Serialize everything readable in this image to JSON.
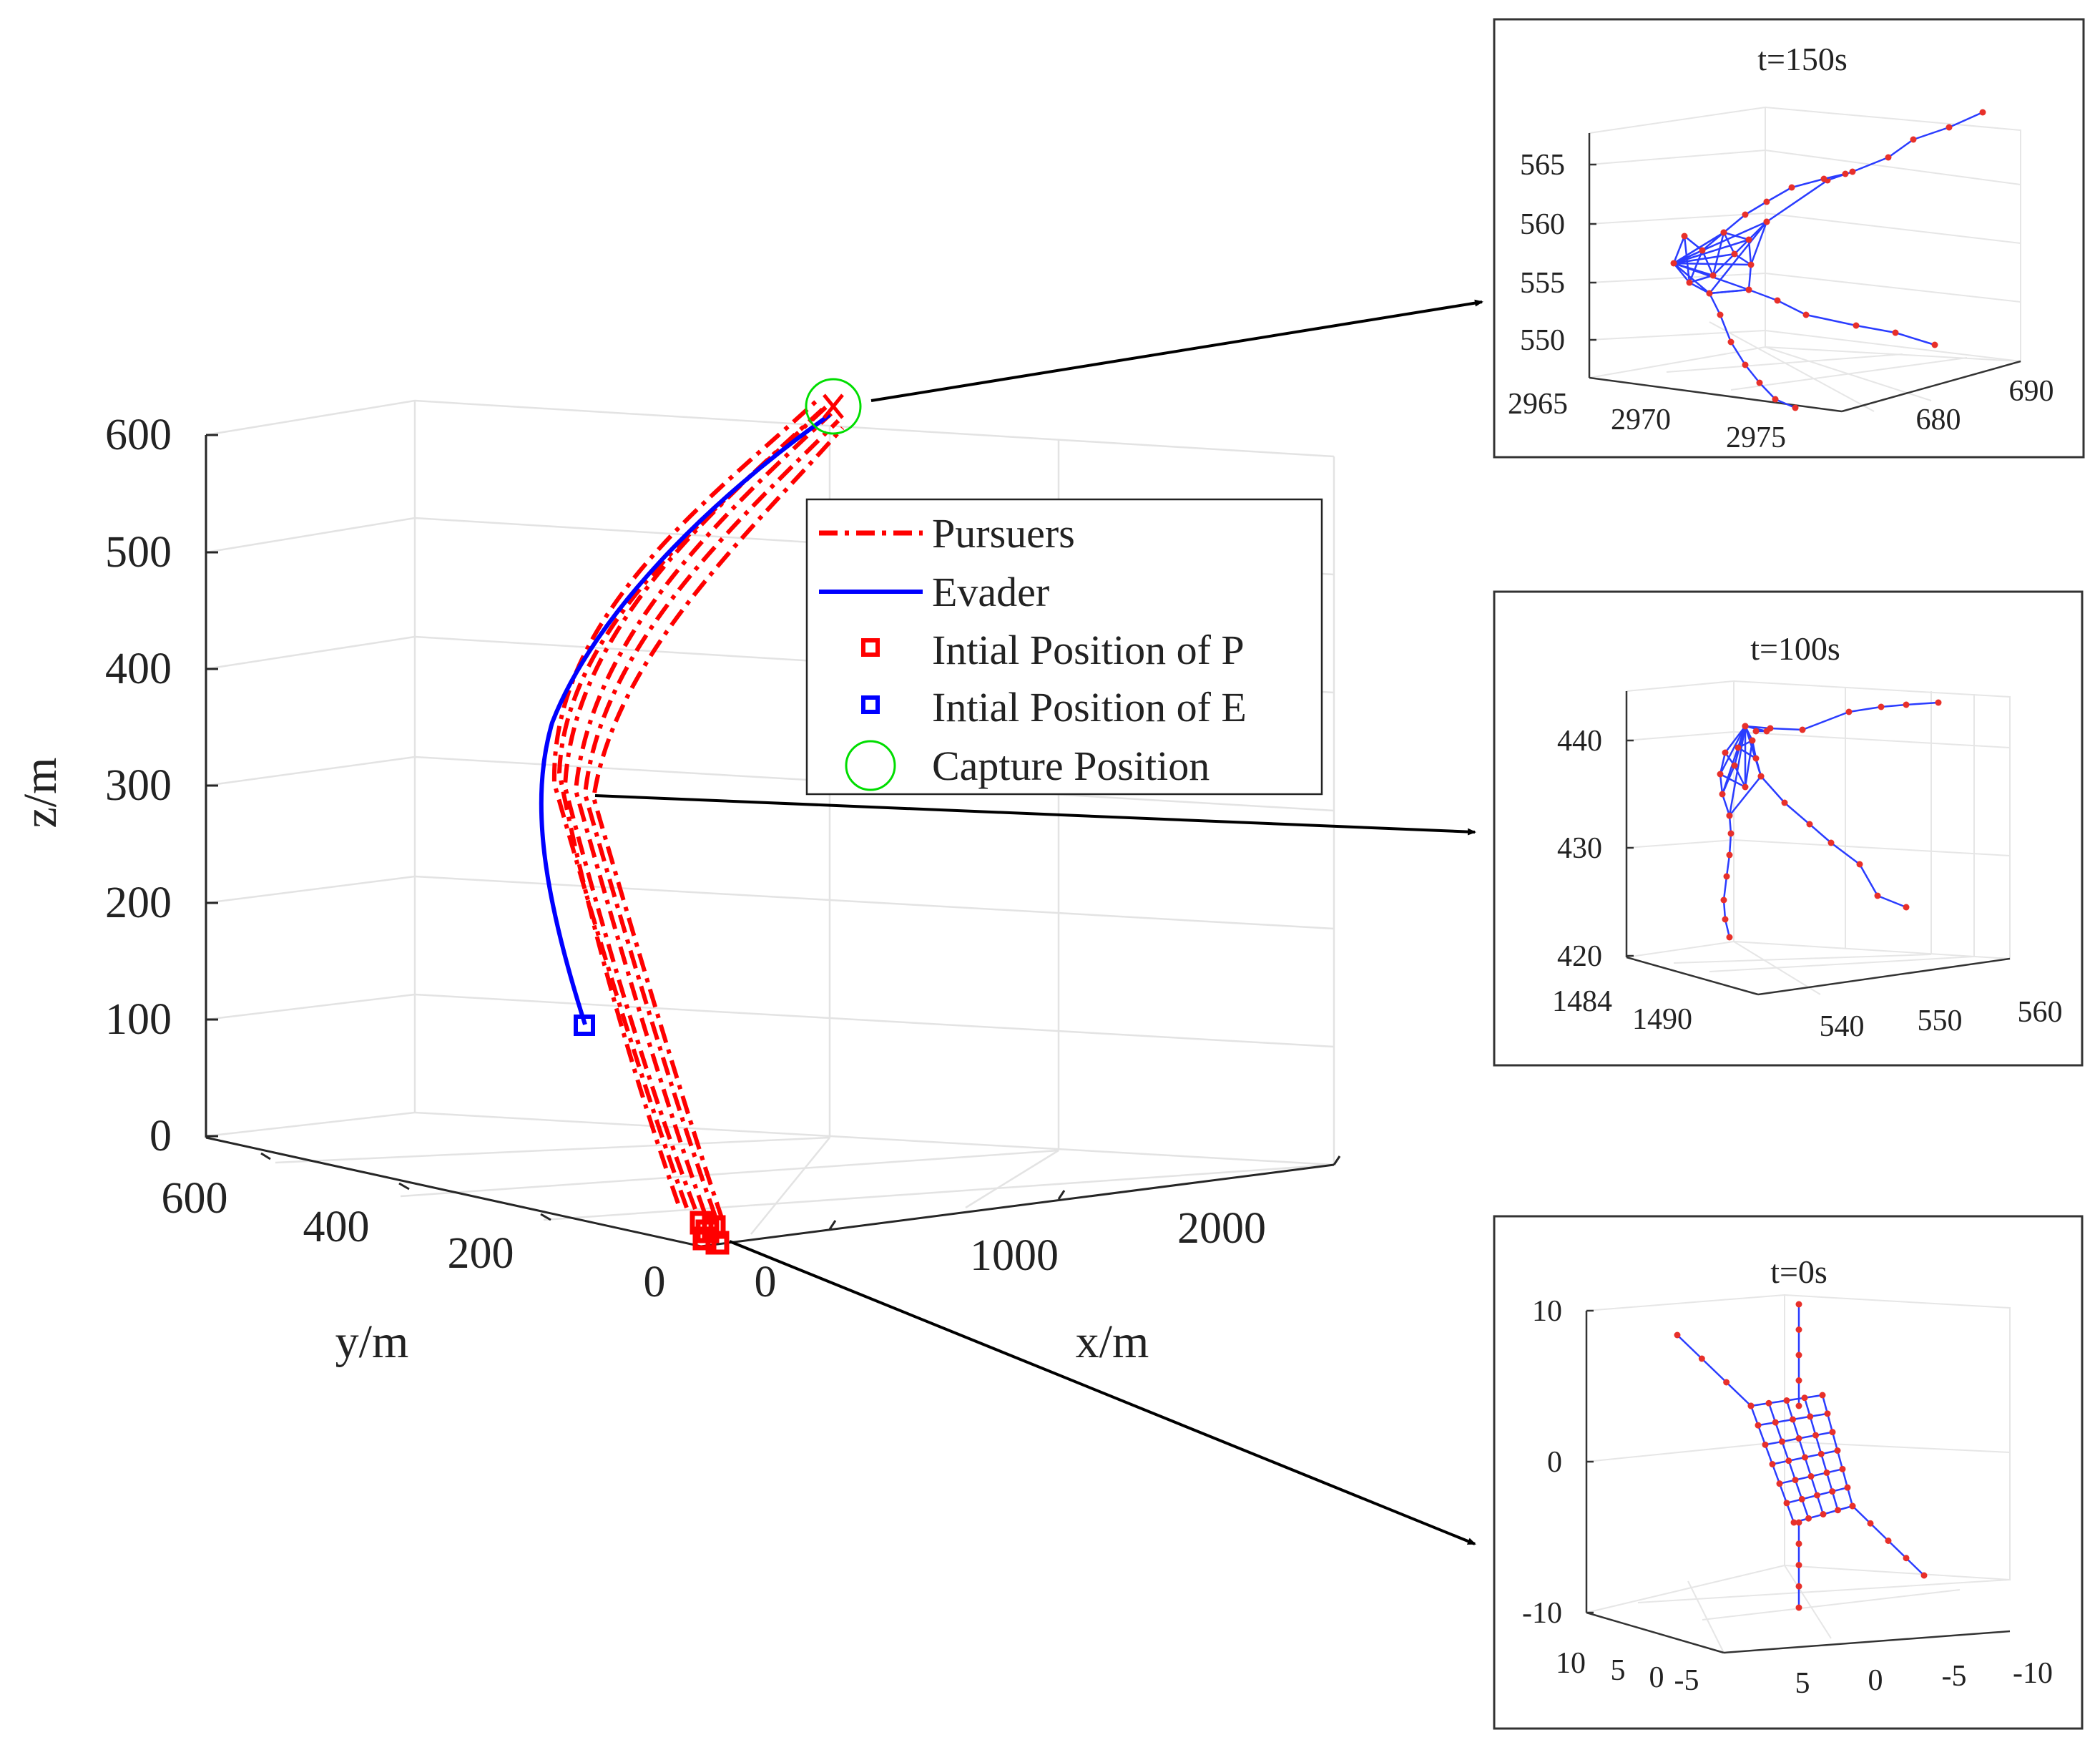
{
  "chart_data": {
    "type": "line",
    "main": {
      "xlabel": "x/m",
      "ylabel": "y/m",
      "zlabel": "z/m",
      "xlim": [
        0,
        2500
      ],
      "ylim": [
        0,
        600
      ],
      "zlim": [
        0,
        600
      ],
      "x_ticks": [
        "0",
        "1000",
        "2000"
      ],
      "y_ticks": [
        "0",
        "200",
        "400",
        "600"
      ],
      "z_ticks": [
        "0",
        "100",
        "200",
        "300",
        "400",
        "500",
        "600"
      ],
      "legend": {
        "position": "center-right",
        "entries": [
          "Pursuers",
          "Evader",
          "Intial Position of P",
          "Intial Position of E",
          "Capture Position"
        ]
      },
      "series": [
        {
          "name": "Pursuers",
          "style": "dash-dot",
          "color": "#ff0000"
        },
        {
          "name": "Evader",
          "style": "solid",
          "color": "#0000ff"
        }
      ]
    },
    "insets": [
      {
        "title": "t=150s",
        "time": 150,
        "z_ticks": [
          "550",
          "555",
          "560",
          "565"
        ],
        "x_ticks": [
          "2965",
          "2970",
          "2975"
        ],
        "y_ticks": [
          "680",
          "690"
        ]
      },
      {
        "title": "t=100s",
        "time": 100,
        "z_ticks": [
          "420",
          "430",
          "440"
        ],
        "x_ticks": [
          "1484",
          "1490"
        ],
        "y_ticks": [
          "540",
          "550",
          "560"
        ]
      },
      {
        "title": "t=0s",
        "time": 0,
        "z_ticks": [
          "-10",
          "0",
          "10"
        ],
        "x_ticks": [
          "10",
          "5",
          "0",
          "-5"
        ],
        "y_ticks": [
          "5",
          "0",
          "-5",
          "-10"
        ]
      }
    ]
  },
  "colors": {
    "pursuer": "#ff0000",
    "evader": "#0000ff",
    "capture": "#00dd00",
    "mesh": "#2a3cff",
    "node": "#e8302a"
  }
}
